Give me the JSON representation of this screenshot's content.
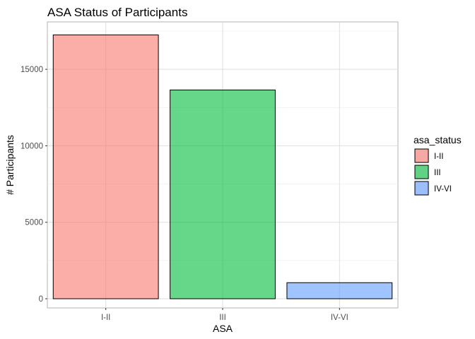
{
  "chart_data": {
    "type": "bar",
    "title": "ASA Status of Participants",
    "xlabel": "ASA",
    "ylabel": "# Participants",
    "categories": [
      "I-II",
      "III",
      "IV-VI"
    ],
    "values": [
      17250,
      13650,
      1050
    ],
    "ylim": [
      -600,
      18100
    ],
    "yticks": [
      0,
      5000,
      10000,
      15000
    ],
    "grid": true,
    "legend": {
      "title": "asa_status",
      "position": "right",
      "entries": [
        "I-II",
        "III",
        "IV-VI"
      ]
    },
    "colors": [
      "#F8766D",
      "#00BA38",
      "#619CFF"
    ],
    "bar_opacity": 0.6
  }
}
